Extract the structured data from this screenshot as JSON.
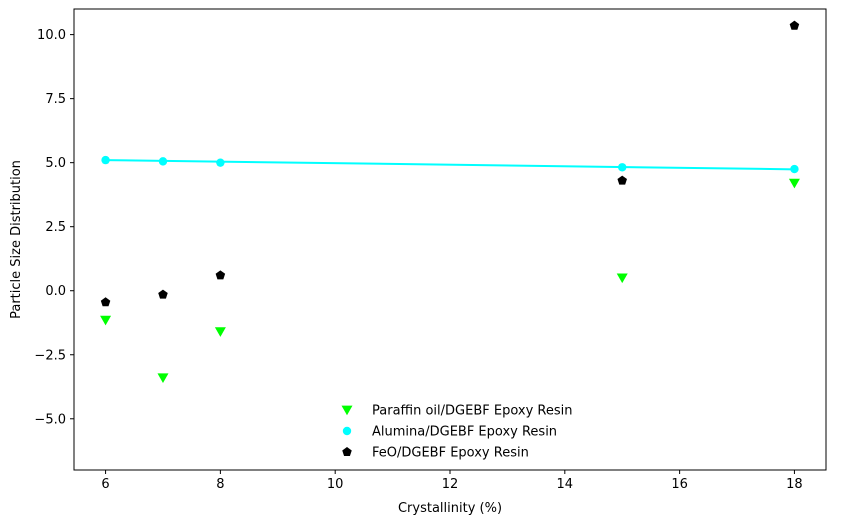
{
  "chart_data": {
    "type": "scatter",
    "xlabel": "Crystallinity (%)",
    "ylabel": "Particle Size Distribution",
    "xlim": [
      5.45,
      18.55
    ],
    "ylim": [
      -7.0,
      11.0
    ],
    "xticks": [
      6,
      8,
      10,
      12,
      14,
      16,
      18
    ],
    "yticks": [
      -5.0,
      -2.5,
      0.0,
      2.5,
      5.0,
      7.5,
      10.0
    ],
    "xtick_labels": [
      "6",
      "8",
      "10",
      "12",
      "14",
      "16",
      "18"
    ],
    "ytick_labels": [
      "−5.0",
      "−2.5",
      "0.0",
      "2.5",
      "5.0",
      "7.5",
      "10.0"
    ],
    "grid": false,
    "legend_position": "lower-center",
    "series": [
      {
        "name": "Paraffin oil/DGEBF Epoxy Resin",
        "marker": "triangle-down",
        "color": "#00ff00",
        "x": [
          6,
          7,
          8,
          15,
          18
        ],
        "y": [
          -1.15,
          -3.4,
          -1.6,
          0.5,
          4.2
        ]
      },
      {
        "name": "Alumina/DGEBF Epoxy Resin",
        "marker": "circle",
        "color": "#00ffff",
        "x": [
          6,
          7,
          8,
          15,
          18
        ],
        "y": [
          5.1,
          5.05,
          5.0,
          4.82,
          4.75
        ],
        "fit_line": {
          "x": [
            6,
            18
          ],
          "y": [
            5.1,
            4.74
          ]
        }
      },
      {
        "name": "FeO/DGEBF Epoxy Resin",
        "marker": "pentagon",
        "color": "#000000",
        "x": [
          6,
          7,
          8,
          15,
          18
        ],
        "y": [
          -0.45,
          -0.15,
          0.6,
          4.3,
          10.35
        ]
      }
    ]
  }
}
